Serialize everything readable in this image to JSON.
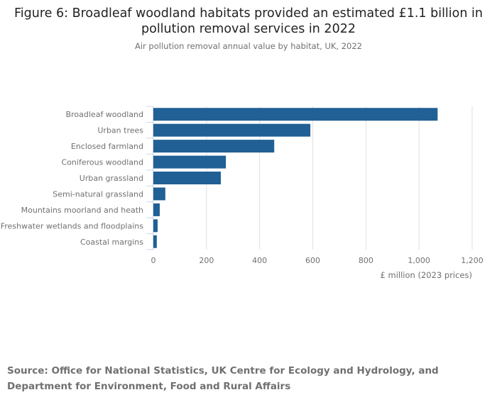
{
  "chart_data": {
    "type": "bar",
    "orientation": "horizontal",
    "title": "Figure 6: Broadleaf woodland habitats provided an estimated £1.1 billion in pollution removal services in 2022",
    "subtitle": "Air pollution removal annual value by habitat, UK, 2022",
    "categories": [
      "Broadleaf woodland",
      "Urban trees",
      "Enclosed farmland",
      "Coniferous woodland",
      "Urban grassland",
      "Semi-natural grassland",
      "Mountains moorland and heath",
      "Freshwater wetlands and floodplains",
      "Coastal margins"
    ],
    "values": [
      1070,
      591,
      455,
      273,
      254,
      45,
      24,
      16,
      13
    ],
    "xlabel": "£ million (2023 prices)",
    "ylabel": "",
    "xlim": [
      0,
      1200
    ],
    "xticks": [
      0,
      200,
      400,
      600,
      800,
      1000,
      1200
    ],
    "xtick_labels": [
      "0",
      "200",
      "400",
      "600",
      "800",
      "1,000",
      "1,200"
    ],
    "grid": true,
    "bar_color": "#206095"
  },
  "source": "Source: Office for National Statistics, UK Centre for Ecology and Hydrology, and Department for Environment, Food and Rural Affairs"
}
